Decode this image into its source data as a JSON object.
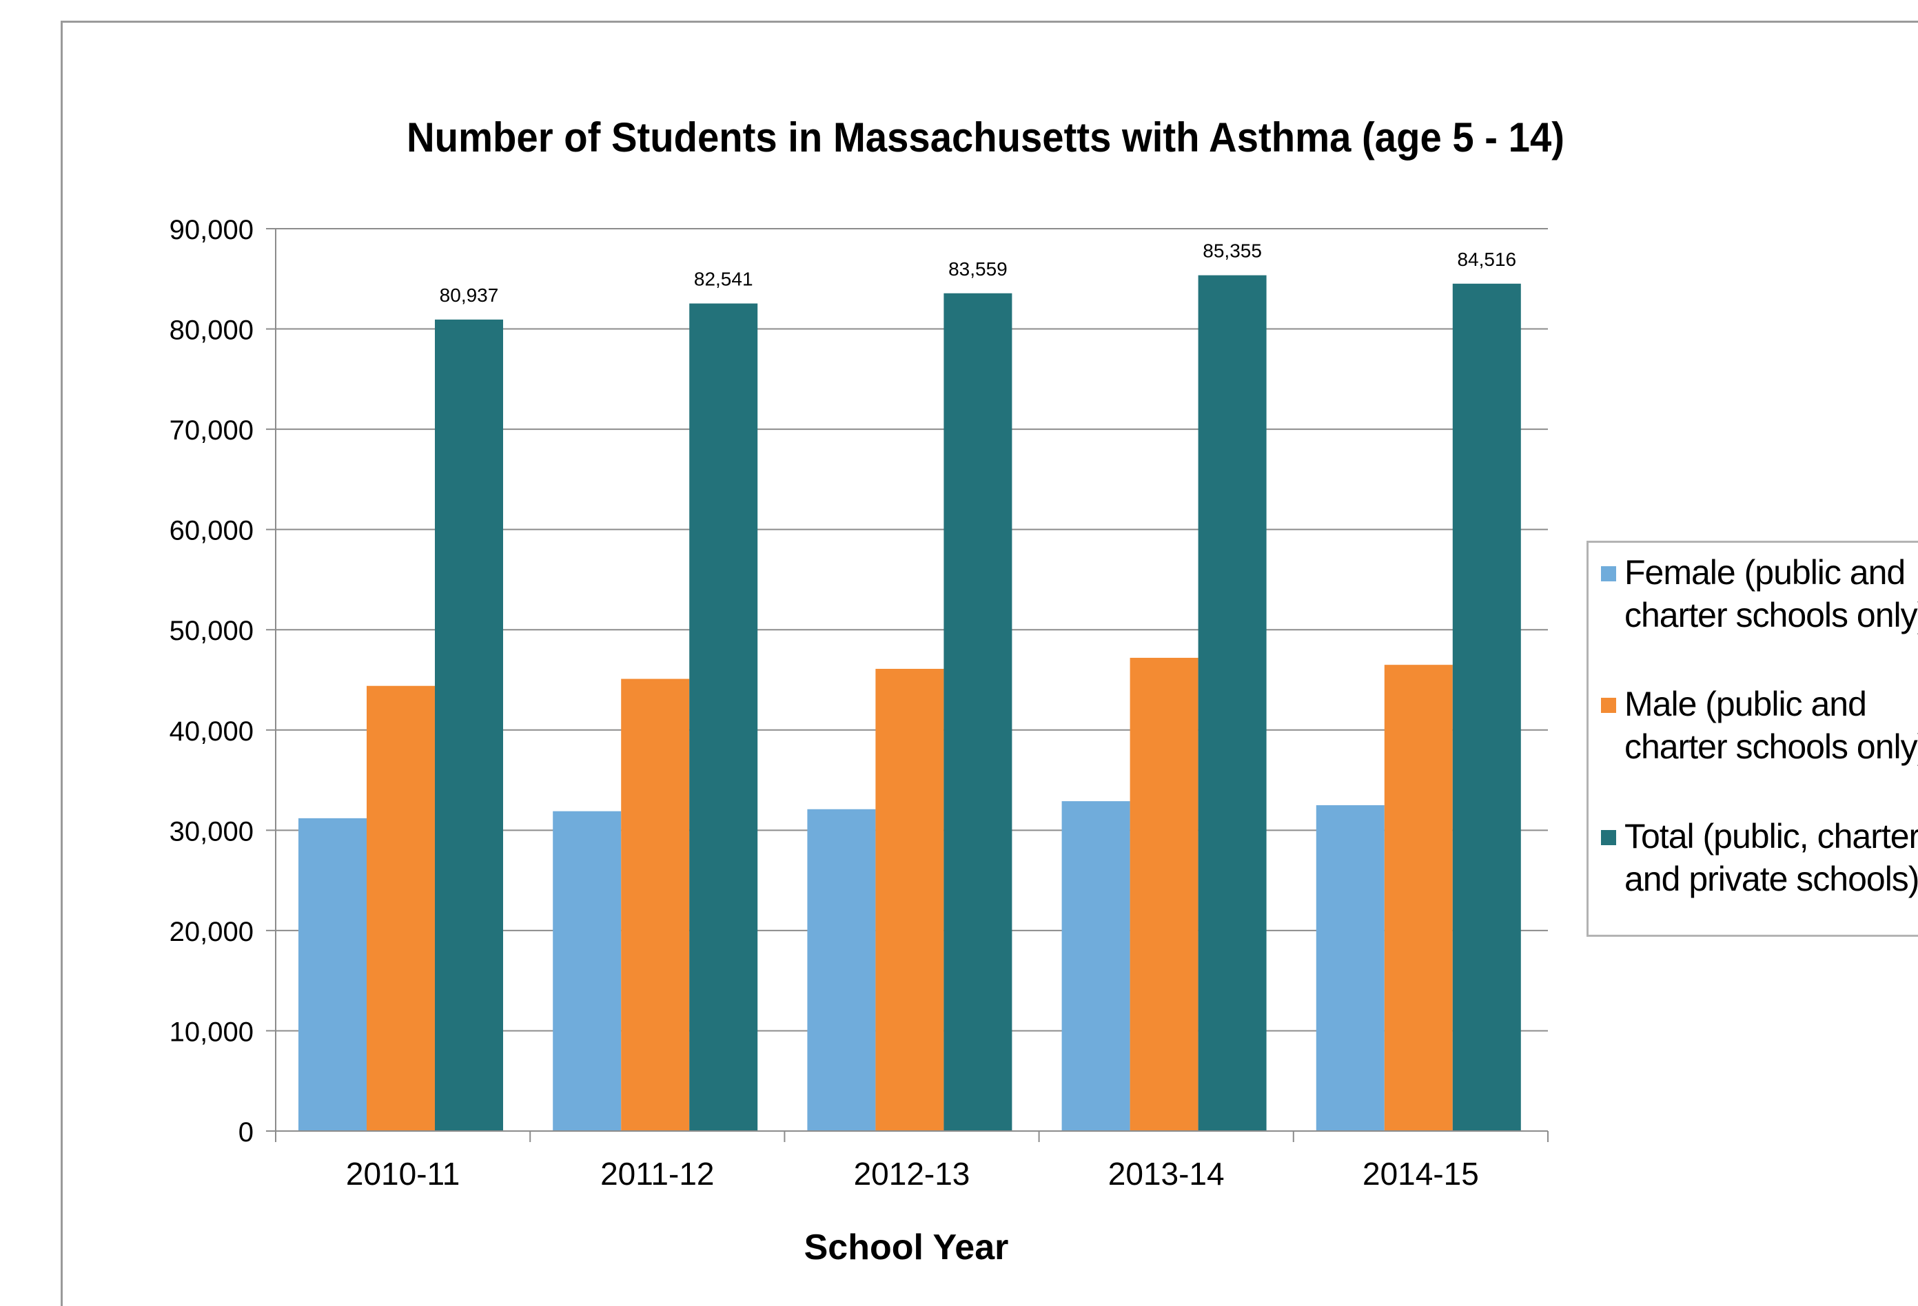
{
  "chart_data": {
    "type": "bar",
    "title": "Number of Students in Massachusetts with Asthma (age 5 - 14)",
    "xlabel": "School Year",
    "ylabel": "",
    "categories": [
      "2010-11",
      "2011-12",
      "2012-13",
      "2013-14",
      "2014-15"
    ],
    "ylim": [
      0,
      90000
    ],
    "yticks": [
      0,
      10000,
      20000,
      30000,
      40000,
      50000,
      60000,
      70000,
      80000,
      90000
    ],
    "ytick_labels": [
      "0",
      "10,000",
      "20,000",
      "30,000",
      "40,000",
      "50,000",
      "60,000",
      "70,000",
      "80,000",
      "90,000"
    ],
    "grid": true,
    "legend_position": "right",
    "series": [
      {
        "name": "Female (public and charter schools only)",
        "color": "#70acdb",
        "values": [
          31200,
          31900,
          32100,
          32900,
          32500
        ],
        "labels": []
      },
      {
        "name": "Male (public and charter schools only)",
        "color": "#f38b33",
        "values": [
          44400,
          45100,
          46100,
          47200,
          46500
        ],
        "labels": []
      },
      {
        "name": "Total (public, charter, and private schools)",
        "color": "#23727a",
        "values": [
          80937,
          82541,
          83559,
          85355,
          84516
        ],
        "labels": [
          "80,937",
          "82,541",
          "83,559",
          "85,355",
          "84,516"
        ]
      }
    ]
  }
}
